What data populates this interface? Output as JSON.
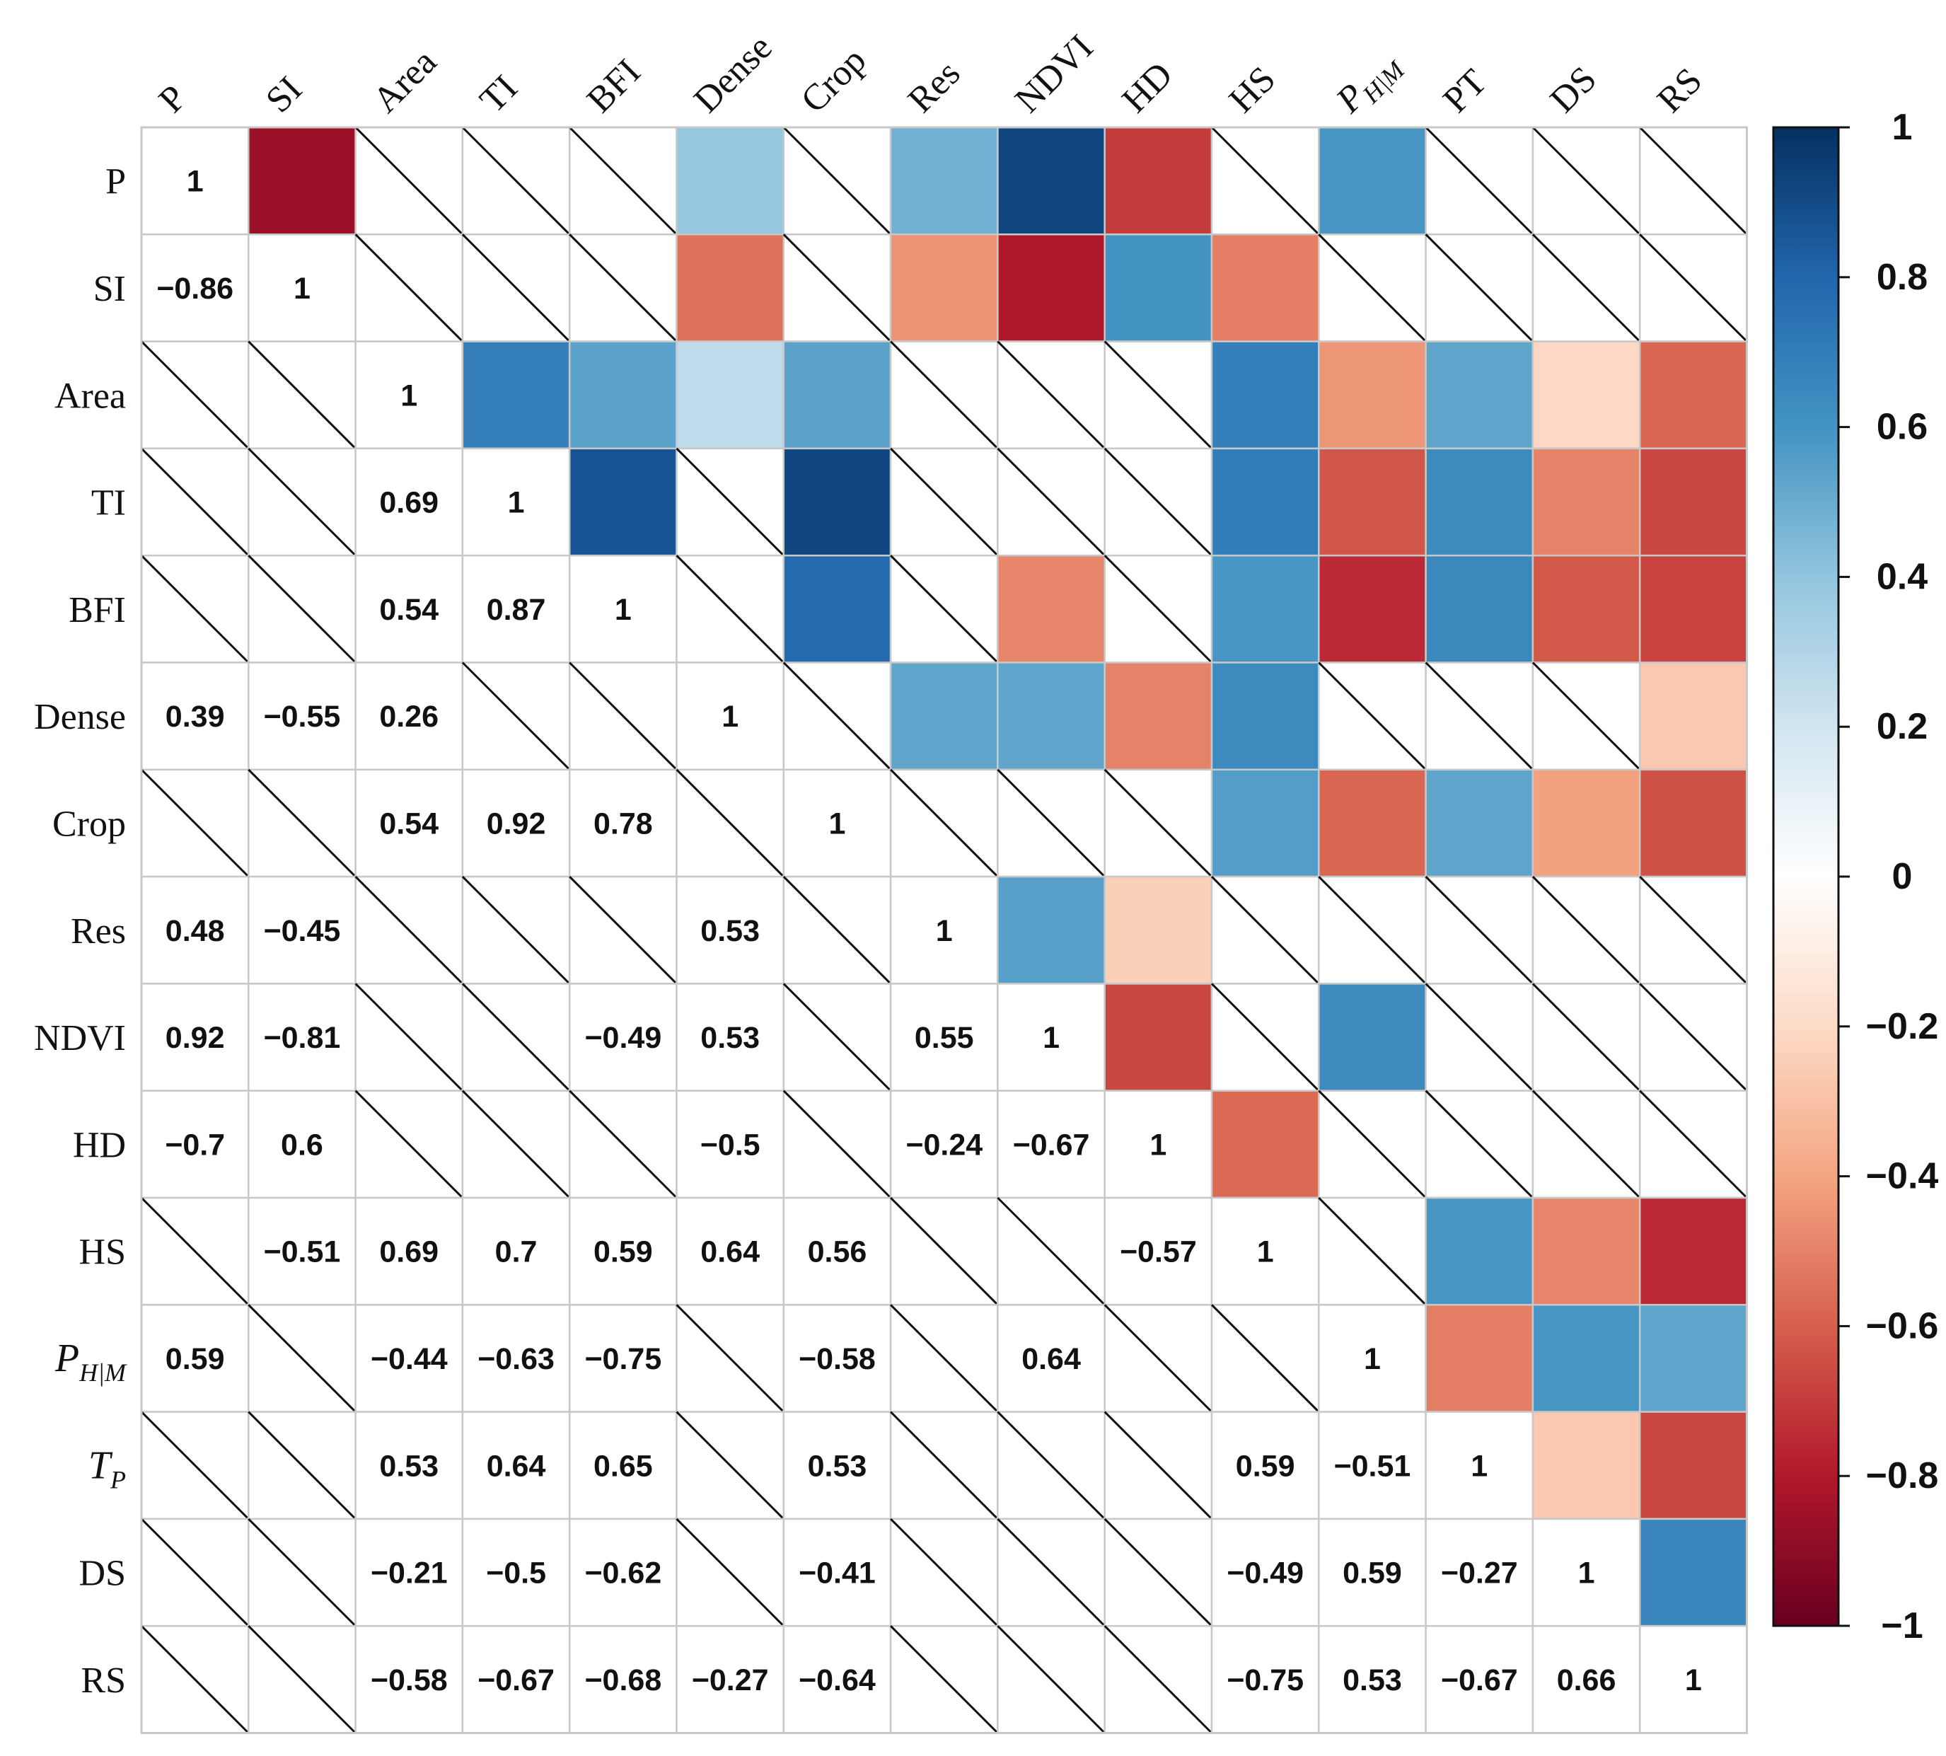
{
  "chart_data": {
    "type": "heatmap",
    "title": "",
    "variables": [
      "P",
      "SI",
      "Area",
      "TI",
      "BFI",
      "Dense",
      "Crop",
      "Res",
      "NDVI",
      "HD",
      "HS",
      "P_H|M",
      "T_P",
      "DS",
      "RS"
    ],
    "row_labels": [
      {
        "base": "P",
        "sub": ""
      },
      {
        "base": "SI",
        "sub": ""
      },
      {
        "base": "Area",
        "sub": ""
      },
      {
        "base": "TI",
        "sub": ""
      },
      {
        "base": "BFI",
        "sub": ""
      },
      {
        "base": "Dense",
        "sub": ""
      },
      {
        "base": "Crop",
        "sub": ""
      },
      {
        "base": "Res",
        "sub": ""
      },
      {
        "base": "NDVI",
        "sub": ""
      },
      {
        "base": "HD",
        "sub": ""
      },
      {
        "base": "HS",
        "sub": ""
      },
      {
        "base": "P",
        "sub": "H|M"
      },
      {
        "base": "T",
        "sub": "P"
      },
      {
        "base": "DS",
        "sub": ""
      },
      {
        "base": "RS",
        "sub": ""
      }
    ],
    "column_labels": [
      {
        "base": "P",
        "sub": ""
      },
      {
        "base": "SI",
        "sub": ""
      },
      {
        "base": "Area",
        "sub": ""
      },
      {
        "base": "TI",
        "sub": ""
      },
      {
        "base": "BFI",
        "sub": ""
      },
      {
        "base": "Dense",
        "sub": ""
      },
      {
        "base": "Crop",
        "sub": ""
      },
      {
        "base": "Res",
        "sub": ""
      },
      {
        "base": "NDVI",
        "sub": ""
      },
      {
        "base": "HD",
        "sub": ""
      },
      {
        "base": "HS",
        "sub": ""
      },
      {
        "base": "P",
        "sub": "H|M"
      },
      {
        "base": "PT",
        "sub": ""
      },
      {
        "base": "DS",
        "sub": ""
      },
      {
        "base": "RS",
        "sub": ""
      }
    ],
    "value_labels": {
      "0,0": "1",
      "1,0": "−0.86",
      "1,1": "1",
      "2,2": "1",
      "3,2": "0.69",
      "3,3": "1",
      "4,2": "0.54",
      "4,3": "0.87",
      "4,4": "1",
      "5,0": "0.39",
      "5,1": "−0.55",
      "5,2": "0.26",
      "5,5": "1",
      "6,2": "0.54",
      "6,3": "0.92",
      "6,4": "0.78",
      "6,6": "1",
      "7,0": "0.48",
      "7,1": "−0.45",
      "7,5": "0.53",
      "7,7": "1",
      "8,0": "0.92",
      "8,1": "−0.81",
      "8,4": "−0.49",
      "8,5": "0.53",
      "8,7": "0.55",
      "8,8": "1",
      "9,0": "−0.7",
      "9,1": "0.6",
      "9,5": "−0.5",
      "9,7": "−0.24",
      "9,8": "−0.67",
      "9,9": "1",
      "10,1": "−0.51",
      "10,2": "0.69",
      "10,3": "0.7",
      "10,4": "0.59",
      "10,5": "0.64",
      "10,6": "0.56",
      "10,9": "−0.57",
      "10,10": "1",
      "11,0": "0.59",
      "11,2": "−0.44",
      "11,3": "−0.63",
      "11,4": "−0.75",
      "11,6": "−0.58",
      "11,8": "0.64",
      "11,11": "1",
      "12,2": "0.53",
      "12,3": "0.64",
      "12,4": "0.65",
      "12,6": "0.53",
      "12,10": "0.59",
      "12,11": "−0.51",
      "12,12": "1",
      "13,2": "−0.21",
      "13,3": "−0.5",
      "13,4": "−0.62",
      "13,6": "−0.41",
      "13,10": "−0.49",
      "13,11": "0.59",
      "13,12": "−0.27",
      "13,13": "1",
      "14,2": "−0.58",
      "14,3": "−0.67",
      "14,4": "−0.68",
      "14,5": "−0.27",
      "14,6": "−0.64",
      "14,10": "−0.75",
      "14,11": "0.53",
      "14,12": "−0.67",
      "14,13": "0.66",
      "14,14": "1"
    },
    "matrix": [
      [
        1,
        -0.86,
        null,
        null,
        null,
        0.39,
        null,
        0.48,
        0.92,
        -0.7,
        null,
        0.59,
        null,
        null,
        null
      ],
      [
        -0.86,
        1,
        null,
        null,
        null,
        -0.55,
        null,
        -0.45,
        -0.81,
        0.6,
        -0.51,
        null,
        null,
        null,
        null
      ],
      [
        null,
        null,
        1,
        0.69,
        0.54,
        0.26,
        0.54,
        null,
        null,
        null,
        0.69,
        -0.44,
        0.53,
        -0.21,
        -0.58
      ],
      [
        null,
        null,
        0.69,
        1,
        0.87,
        null,
        0.92,
        null,
        null,
        null,
        0.7,
        -0.63,
        0.64,
        -0.5,
        -0.67
      ],
      [
        null,
        null,
        0.54,
        0.87,
        1,
        null,
        0.78,
        null,
        -0.49,
        null,
        0.59,
        -0.75,
        0.65,
        -0.62,
        -0.68
      ],
      [
        0.39,
        -0.55,
        0.26,
        null,
        null,
        1,
        null,
        0.53,
        0.53,
        -0.5,
        0.64,
        null,
        null,
        null,
        -0.27
      ],
      [
        null,
        null,
        0.54,
        0.92,
        0.78,
        null,
        1,
        null,
        null,
        null,
        0.56,
        -0.58,
        0.53,
        -0.41,
        -0.64
      ],
      [
        0.48,
        -0.45,
        null,
        null,
        null,
        0.53,
        null,
        1,
        0.55,
        -0.24,
        null,
        null,
        null,
        null,
        null
      ],
      [
        0.92,
        -0.81,
        null,
        null,
        -0.49,
        0.53,
        null,
        0.55,
        1,
        -0.67,
        null,
        0.64,
        null,
        null,
        null
      ],
      [
        -0.7,
        0.6,
        null,
        null,
        null,
        -0.5,
        null,
        -0.24,
        -0.67,
        1,
        -0.57,
        null,
        null,
        null,
        null
      ],
      [
        null,
        -0.51,
        0.69,
        0.7,
        0.59,
        0.64,
        0.56,
        null,
        null,
        -0.57,
        1,
        null,
        0.59,
        -0.49,
        -0.75
      ],
      [
        0.59,
        null,
        -0.44,
        -0.63,
        -0.75,
        null,
        -0.58,
        null,
        0.64,
        null,
        null,
        1,
        -0.51,
        0.59,
        0.53
      ],
      [
        null,
        null,
        0.53,
        0.64,
        0.65,
        null,
        0.53,
        null,
        null,
        null,
        0.59,
        -0.51,
        1,
        -0.27,
        -0.67
      ],
      [
        null,
        null,
        -0.21,
        -0.5,
        -0.62,
        null,
        -0.41,
        null,
        null,
        null,
        -0.49,
        0.59,
        -0.27,
        1,
        0.66
      ],
      [
        null,
        null,
        -0.58,
        -0.67,
        -0.68,
        -0.27,
        -0.64,
        null,
        null,
        null,
        -0.75,
        0.53,
        -0.67,
        0.66,
        1
      ]
    ],
    "upper_triangle": "colored cells, no numbers",
    "lower_triangle": "numeric labels",
    "insignificant_marker": "diagonal line",
    "colorbar": {
      "min": -1,
      "max": 1,
      "ticks": [
        "1",
        "0.8",
        "0.6",
        "0.4",
        "0.2",
        "0",
        "−0.2",
        "−0.4",
        "−0.6",
        "−0.8",
        "−1"
      ],
      "tick_values": [
        1,
        0.8,
        0.6,
        0.4,
        0.2,
        0,
        -0.2,
        -0.4,
        -0.6,
        -0.8,
        -1
      ],
      "colormap": "RdBu (red negative, blue positive)"
    },
    "colors": {
      "stops": [
        "#67001f",
        "#b2182b",
        "#d6604d",
        "#f4a582",
        "#fddbc7",
        "#ffffff",
        "#d1e5f0",
        "#92c5de",
        "#4393c3",
        "#2166ac",
        "#053061"
      ],
      "grid": "#c8c8c8",
      "text": "#111111"
    }
  }
}
